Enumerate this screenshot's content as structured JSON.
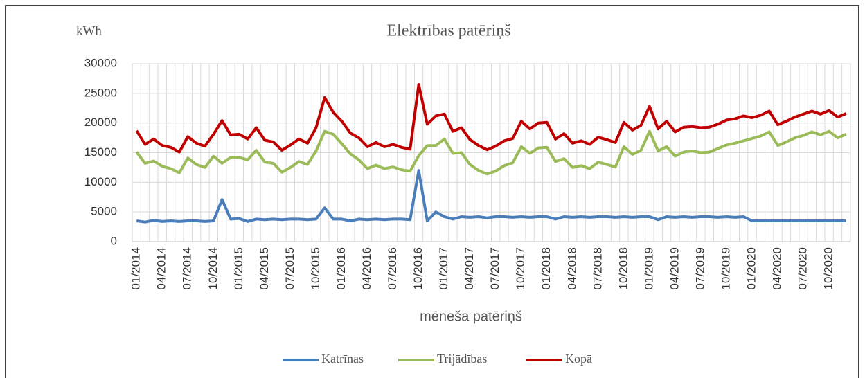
{
  "chart_data": {
    "type": "line",
    "title": "Elektrības patēriņš",
    "y_label": "kWh",
    "x_label": "mēneša patēriņš",
    "categories": [
      "01/2014",
      null,
      null,
      "04/2014",
      null,
      null,
      "07/2014",
      null,
      null,
      "10/2014",
      null,
      null,
      "01/2015",
      null,
      null,
      "04/2015",
      null,
      null,
      "07/2015",
      null,
      null,
      "10/2015",
      null,
      null,
      "01/2016",
      null,
      null,
      "04/2016",
      null,
      null,
      "07/2016",
      null,
      null,
      "10/2016",
      null,
      null,
      "01/2017",
      null,
      null,
      "04/2017",
      null,
      null,
      "07/2017",
      null,
      null,
      "10/2017",
      null,
      null,
      "01/2018",
      null,
      null,
      "04/2018",
      null,
      null,
      "07/2018",
      null,
      null,
      "10/2018",
      null,
      null,
      "01/2019",
      null,
      null,
      "04/2019",
      null,
      null,
      "07/2019",
      null,
      null,
      "10/2019",
      null,
      null,
      "01/2020",
      null,
      null,
      "04/2020",
      null,
      null,
      "07/2020",
      null,
      null,
      "10/2020",
      null,
      null
    ],
    "series": [
      {
        "name": "Katrīnas",
        "color": "#4a7ebb",
        "values": [
          3500,
          3300,
          3600,
          3400,
          3500,
          3400,
          3500,
          3500,
          3400,
          3500,
          7100,
          3800,
          3900,
          3400,
          3800,
          3700,
          3800,
          3700,
          3800,
          3800,
          3700,
          3800,
          5700,
          3800,
          3800,
          3500,
          3800,
          3700,
          3800,
          3700,
          3800,
          3800,
          3700,
          12000,
          3500,
          5000,
          4200,
          3800,
          4200,
          4100,
          4200,
          4000,
          4200,
          4200,
          4100,
          4200,
          4100,
          4200,
          4200,
          3800,
          4200,
          4100,
          4200,
          4100,
          4200,
          4200,
          4100,
          4200,
          4100,
          4200,
          4200,
          3700,
          4200,
          4100,
          4200,
          4100,
          4200,
          4200,
          4100,
          4200,
          4100,
          4200,
          3500,
          3500,
          3500,
          3500,
          3500,
          3500,
          3500,
          3500,
          3500,
          3500,
          3500,
          3500
        ]
      },
      {
        "name": "Trijādības",
        "color": "#9bbb59",
        "values": [
          15100,
          13200,
          13600,
          12700,
          12300,
          11600,
          14100,
          13000,
          12500,
          14400,
          13200,
          14200,
          14200,
          13800,
          15400,
          13400,
          13200,
          11700,
          12500,
          13500,
          13000,
          15300,
          18600,
          18100,
          16500,
          14800,
          13800,
          12300,
          12900,
          12300,
          12600,
          12100,
          11900,
          14500,
          16200,
          16200,
          17300,
          14900,
          15000,
          13000,
          12000,
          11400,
          11900,
          12800,
          13300,
          16000,
          14900,
          15800,
          15900,
          13500,
          14000,
          12500,
          12800,
          12300,
          13400,
          13000,
          12600,
          16000,
          14700,
          15400,
          18600,
          15300,
          16000,
          14400,
          15100,
          15300,
          15000,
          15100,
          15700,
          16300,
          16600,
          17000,
          17400,
          17800,
          18500,
          16200,
          16800,
          17500,
          17900,
          18500,
          18000,
          18600,
          17500,
          18100
        ]
      },
      {
        "name": "Kopā",
        "color": "#c00000",
        "values": [
          18700,
          16400,
          17300,
          16200,
          15900,
          15100,
          17700,
          16600,
          16100,
          18100,
          20400,
          18000,
          18100,
          17300,
          19200,
          17100,
          16800,
          15400,
          16300,
          17300,
          16600,
          19200,
          24300,
          21800,
          20300,
          18300,
          17500,
          16000,
          16700,
          16000,
          16400,
          15900,
          15600,
          26500,
          19800,
          21200,
          21500,
          18600,
          19200,
          17200,
          16200,
          15500,
          16100,
          17000,
          17400,
          20300,
          19000,
          20000,
          20100,
          17300,
          18200,
          16600,
          17000,
          16400,
          17600,
          17200,
          16700,
          20100,
          18800,
          19600,
          22800,
          19000,
          20300,
          18500,
          19300,
          19400,
          19200,
          19300,
          19800,
          20500,
          20700,
          21200,
          20900,
          21300,
          22000,
          19700,
          20300,
          21000,
          21500,
          22000,
          21500,
          22100,
          21000,
          21600
        ]
      }
    ],
    "ylim": [
      0,
      30000
    ],
    "yticks": [
      0,
      5000,
      10000,
      15000,
      20000,
      25000,
      30000
    ],
    "grid": true,
    "legend": "bottom"
  }
}
